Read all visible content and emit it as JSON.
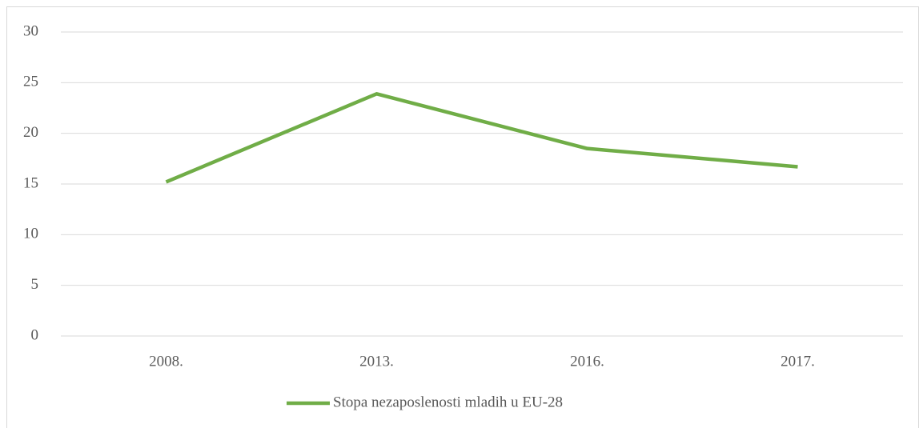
{
  "chart_data": {
    "type": "line",
    "categories": [
      "2008.",
      "2013.",
      "2016.",
      "2017."
    ],
    "series": [
      {
        "name": "Stopa nezaposlenosti mladih u EU-28",
        "color": "#70ad47",
        "values": [
          15.2,
          23.9,
          18.5,
          16.7
        ]
      }
    ],
    "ylim": [
      0,
      30
    ],
    "yticks": [
      0,
      5,
      10,
      15,
      20,
      25,
      30
    ],
    "grid": true,
    "legend": "bottom"
  }
}
